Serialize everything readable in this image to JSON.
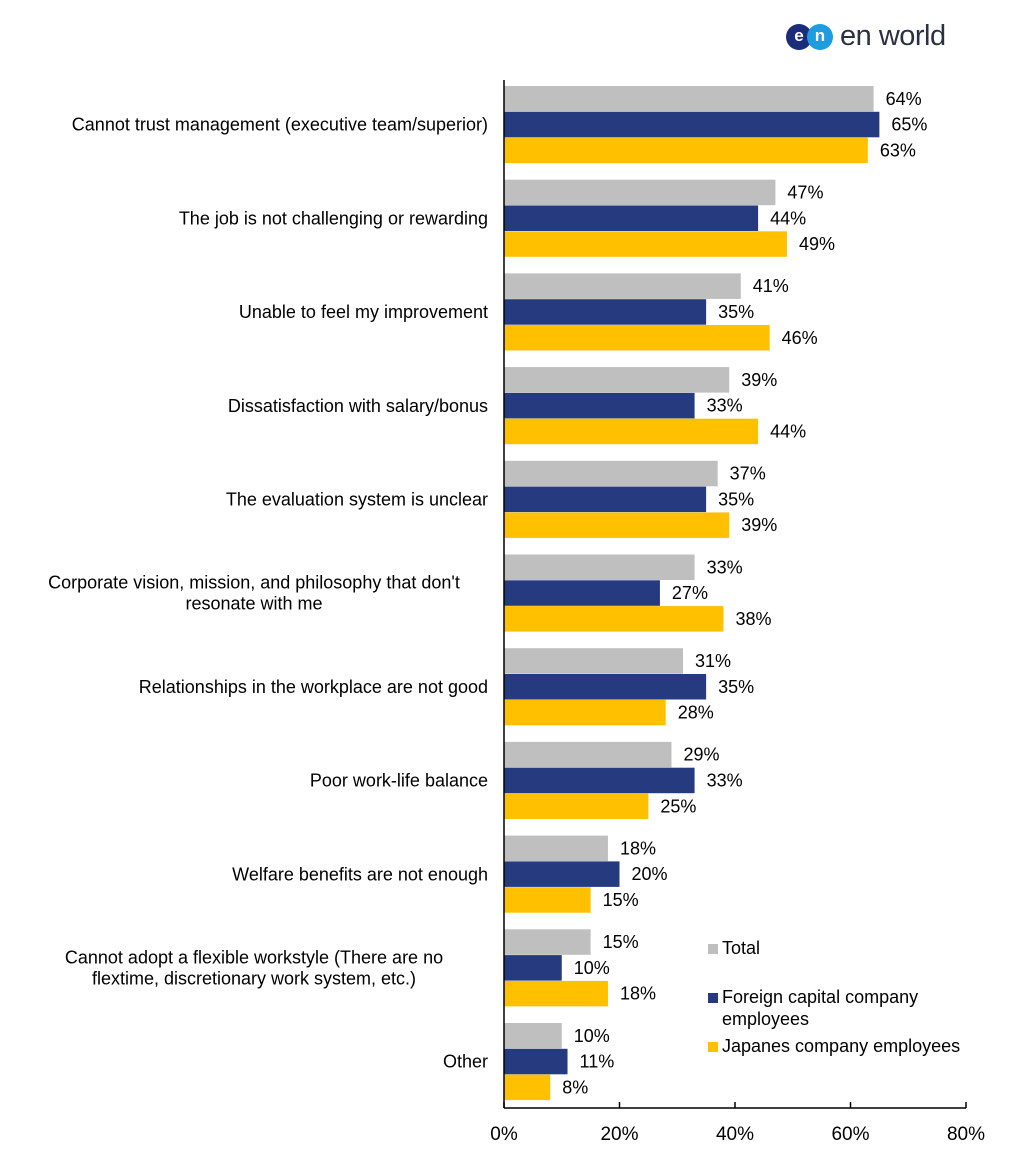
{
  "logo": {
    "mark1": "e",
    "mark2": "n",
    "word": "en world"
  },
  "chart_data": {
    "type": "bar",
    "orientation": "horizontal",
    "categories": [
      "Cannot trust management (executive team/superior)",
      "The job is not challenging or rewarding",
      "Unable to feel my improvement",
      "Dissatisfaction with salary/bonus",
      "The evaluation system is unclear",
      "Corporate vision, mission, and philosophy that don't resonate with me",
      "Relationships in the workplace are not good",
      "Poor work-life balance",
      "Welfare benefits are not enough",
      "Cannot adopt a flexible workstyle (There are no flextime, discretionary work system, etc.)",
      "Other"
    ],
    "series": [
      {
        "name": "Total",
        "color": "#bfbfbf",
        "values": [
          64,
          47,
          41,
          39,
          37,
          33,
          31,
          29,
          18,
          15,
          10
        ]
      },
      {
        "name": "Foreign capital company employees",
        "color": "#253a7f",
        "values": [
          65,
          44,
          35,
          33,
          35,
          27,
          35,
          33,
          20,
          10,
          11
        ]
      },
      {
        "name": "Japanes company employees",
        "color": "#ffc000",
        "values": [
          63,
          49,
          46,
          44,
          39,
          38,
          28,
          25,
          15,
          18,
          8
        ]
      }
    ],
    "xlim": [
      0,
      80
    ],
    "xticks": [
      "0%",
      "20%",
      "40%",
      "60%",
      "80%"
    ],
    "value_suffix": "%",
    "grid": false,
    "legend_position": "bottom-right"
  }
}
